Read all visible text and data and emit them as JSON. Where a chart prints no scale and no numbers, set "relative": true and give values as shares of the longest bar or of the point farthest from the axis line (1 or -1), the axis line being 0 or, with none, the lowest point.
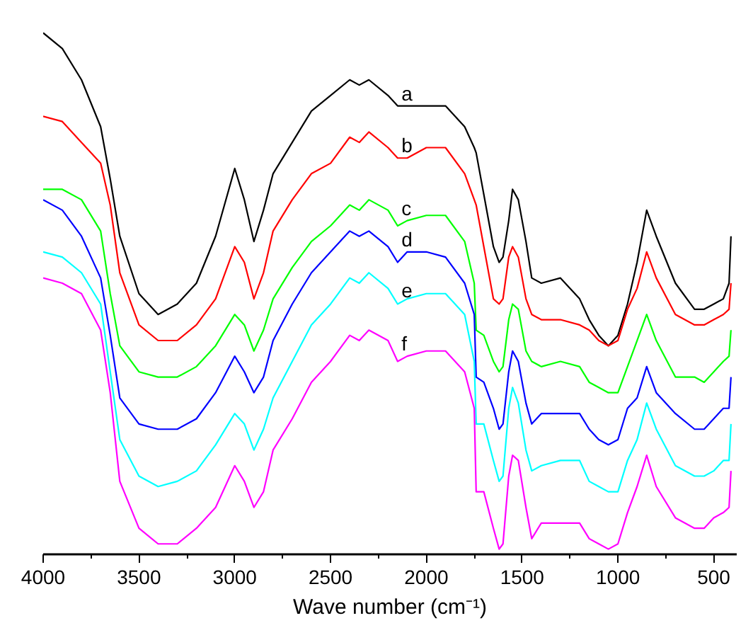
{
  "chart_data": {
    "type": "line",
    "xlabel": "Wave number (cm⁻¹)",
    "relative": true,
    "x": [
      4000,
      3900,
      3800,
      3700,
      3650,
      3600,
      3500,
      3400,
      3300,
      3200,
      3100,
      3000,
      2950,
      2900,
      2850,
      2800,
      2700,
      2600,
      2500,
      2400,
      2350,
      2300,
      2200,
      2150,
      2100,
      2000,
      1900,
      1800,
      1750,
      1740,
      1700,
      1650,
      1620,
      1600,
      1570,
      1550,
      1520,
      1480,
      1450,
      1400,
      1300,
      1200,
      1150,
      1100,
      1050,
      1000,
      950,
      900,
      850,
      800,
      700,
      600,
      550,
      500,
      450,
      420,
      410
    ],
    "xlim": [
      4000,
      380
    ],
    "xticks": [
      4000,
      3500,
      3000,
      2500,
      2000,
      1500,
      1000,
      500
    ],
    "series": [
      {
        "name": "a",
        "color": "#000000",
        "values": [
          1.0,
          0.97,
          0.91,
          0.82,
          0.72,
          0.61,
          0.5,
          0.46,
          0.48,
          0.52,
          0.61,
          0.74,
          0.68,
          0.6,
          0.66,
          0.73,
          0.79,
          0.85,
          0.88,
          0.91,
          0.9,
          0.91,
          0.88,
          0.86,
          0.86,
          0.86,
          0.86,
          0.82,
          0.78,
          0.77,
          0.69,
          0.59,
          0.56,
          0.57,
          0.64,
          0.7,
          0.68,
          0.6,
          0.53,
          0.52,
          0.53,
          0.49,
          0.45,
          0.42,
          0.4,
          0.42,
          0.48,
          0.56,
          0.66,
          0.61,
          0.52,
          0.47,
          0.47,
          0.48,
          0.49,
          0.52,
          0.61
        ]
      },
      {
        "name": "b",
        "color": "#ff0000",
        "values": [
          0.84,
          0.83,
          0.79,
          0.75,
          0.67,
          0.54,
          0.44,
          0.41,
          0.41,
          0.44,
          0.49,
          0.59,
          0.56,
          0.49,
          0.54,
          0.62,
          0.68,
          0.73,
          0.75,
          0.8,
          0.79,
          0.81,
          0.78,
          0.76,
          0.76,
          0.78,
          0.78,
          0.73,
          0.68,
          0.67,
          0.59,
          0.49,
          0.48,
          0.49,
          0.57,
          0.59,
          0.57,
          0.49,
          0.46,
          0.45,
          0.45,
          0.44,
          0.43,
          0.41,
          0.4,
          0.41,
          0.47,
          0.51,
          0.58,
          0.53,
          0.46,
          0.44,
          0.44,
          0.45,
          0.46,
          0.47,
          0.52
        ]
      },
      {
        "name": "c",
        "color": "#00ff00",
        "values": [
          0.7,
          0.7,
          0.68,
          0.62,
          0.5,
          0.4,
          0.35,
          0.34,
          0.34,
          0.36,
          0.4,
          0.46,
          0.44,
          0.39,
          0.43,
          0.49,
          0.55,
          0.6,
          0.63,
          0.67,
          0.66,
          0.68,
          0.66,
          0.63,
          0.64,
          0.65,
          0.65,
          0.6,
          0.52,
          0.43,
          0.42,
          0.37,
          0.35,
          0.36,
          0.45,
          0.48,
          0.47,
          0.39,
          0.37,
          0.36,
          0.37,
          0.36,
          0.33,
          0.32,
          0.31,
          0.31,
          0.36,
          0.41,
          0.46,
          0.41,
          0.34,
          0.34,
          0.33,
          0.35,
          0.37,
          0.38,
          0.43
        ]
      },
      {
        "name": "d",
        "color": "#0000ff",
        "values": [
          0.68,
          0.66,
          0.61,
          0.53,
          0.42,
          0.3,
          0.25,
          0.24,
          0.24,
          0.26,
          0.31,
          0.38,
          0.35,
          0.31,
          0.34,
          0.41,
          0.48,
          0.54,
          0.58,
          0.62,
          0.61,
          0.62,
          0.59,
          0.56,
          0.58,
          0.58,
          0.57,
          0.52,
          0.46,
          0.34,
          0.33,
          0.28,
          0.24,
          0.25,
          0.35,
          0.39,
          0.37,
          0.29,
          0.25,
          0.27,
          0.27,
          0.27,
          0.24,
          0.22,
          0.21,
          0.22,
          0.28,
          0.3,
          0.36,
          0.31,
          0.27,
          0.24,
          0.24,
          0.26,
          0.28,
          0.28,
          0.34
        ]
      },
      {
        "name": "e",
        "color": "#00ffff",
        "values": [
          0.58,
          0.57,
          0.54,
          0.48,
          0.35,
          0.22,
          0.15,
          0.13,
          0.14,
          0.16,
          0.21,
          0.27,
          0.25,
          0.2,
          0.24,
          0.3,
          0.37,
          0.44,
          0.48,
          0.53,
          0.52,
          0.54,
          0.51,
          0.48,
          0.49,
          0.5,
          0.5,
          0.46,
          0.37,
          0.25,
          0.25,
          0.18,
          0.14,
          0.15,
          0.28,
          0.32,
          0.29,
          0.2,
          0.16,
          0.17,
          0.18,
          0.18,
          0.14,
          0.13,
          0.12,
          0.12,
          0.18,
          0.22,
          0.29,
          0.24,
          0.17,
          0.15,
          0.15,
          0.16,
          0.18,
          0.18,
          0.25
        ]
      },
      {
        "name": "f",
        "color": "#ff00ff",
        "values": [
          0.53,
          0.52,
          0.5,
          0.43,
          0.31,
          0.14,
          0.05,
          0.02,
          0.02,
          0.05,
          0.09,
          0.17,
          0.14,
          0.09,
          0.12,
          0.2,
          0.26,
          0.33,
          0.37,
          0.42,
          0.41,
          0.43,
          0.41,
          0.37,
          0.38,
          0.39,
          0.39,
          0.35,
          0.28,
          0.12,
          0.12,
          0.05,
          0.01,
          0.02,
          0.15,
          0.19,
          0.18,
          0.09,
          0.03,
          0.06,
          0.06,
          0.06,
          0.03,
          0.02,
          0.01,
          0.02,
          0.08,
          0.13,
          0.19,
          0.13,
          0.07,
          0.05,
          0.05,
          0.07,
          0.08,
          0.09,
          0.16
        ]
      }
    ]
  }
}
